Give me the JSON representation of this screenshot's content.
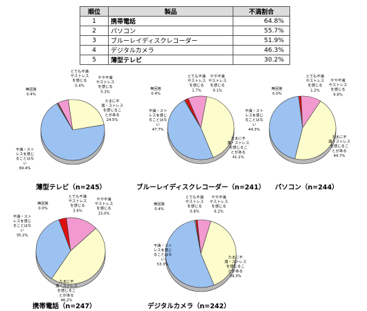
{
  "table": {
    "headers": [
      "順位",
      "製品",
      "不満割合"
    ],
    "rows": [
      {
        "rank": "1",
        "product": "携帯電話",
        "rate": "64.8%",
        "bold": true
      },
      {
        "rank": "2",
        "product": "パソコン",
        "rate": "55.7%",
        "bold": false
      },
      {
        "rank": "3",
        "product": "ブルーレイディスクレコーダー",
        "rate": "51.9%",
        "bold": false
      },
      {
        "rank": "4",
        "product": "デジタルカメラ",
        "rate": "46.3%",
        "bold": false
      },
      {
        "rank": "5",
        "product": "薄型テレビ",
        "rate": "30.2%",
        "bold": true
      }
    ]
  },
  "colors": {
    "very_stress": "#dd1010",
    "somewhat": "#f29ad0",
    "sometimes": "#fdfccc",
    "none": "#9cc2f2",
    "no_answer": "#ffffff"
  },
  "chart_data": [
    {
      "type": "pie",
      "title": "薄型テレビ（n=245）",
      "slices": [
        {
          "label": "無回答",
          "value": 0.4,
          "value_label": "0.4%",
          "color": "#ffffff"
        },
        {
          "label": "とても不満やストレスを感じる",
          "value": 0.4,
          "value_label": "0.4%",
          "color": "#dd1010"
        },
        {
          "label": "やや不満やストレスを感じる",
          "value": 5.3,
          "value_label": "5.3%",
          "color": "#f29ad0"
        },
        {
          "label": "たまに不満・ストレスを感じることがある",
          "value": 24.5,
          "value_label": "24.5%",
          "color": "#fdfccc"
        },
        {
          "label": "不満・ストレスを感じることはない",
          "value": 69.4,
          "value_label": "69.4%",
          "color": "#9cc2f2"
        }
      ]
    },
    {
      "type": "pie",
      "title": "ブルーレイディスクレコーダー（n=241）",
      "slices": [
        {
          "label": "無回答",
          "value": 0.4,
          "value_label": "0.4%",
          "color": "#ffffff"
        },
        {
          "label": "とても不満やストレスを感じる",
          "value": 1.7,
          "value_label": "1.7%",
          "color": "#dd1010"
        },
        {
          "label": "やや不満やストレスを感じる",
          "value": 9.1,
          "value_label": "9.1%",
          "color": "#f29ad0"
        },
        {
          "label": "たまに不満・ストレスを感じることがある",
          "value": 41.1,
          "value_label": "41.1%",
          "color": "#fdfccc"
        },
        {
          "label": "不満・ストレスを感じることはない",
          "value": 47.7,
          "value_label": "47.7%",
          "color": "#9cc2f2"
        }
      ]
    },
    {
      "type": "pie",
      "title": "パソコン（n=244）",
      "slices": [
        {
          "label": "無回答",
          "value": 0.0,
          "value_label": "0.0%",
          "color": "#ffffff"
        },
        {
          "label": "とても不満やストレスを感じる",
          "value": 1.2,
          "value_label": "1.2%",
          "color": "#dd1010"
        },
        {
          "label": "やや不満やストレスを感じる",
          "value": 9.8,
          "value_label": "9.8%",
          "color": "#f29ad0"
        },
        {
          "label": "たまに不満・ストレスを感じることがある",
          "value": 44.7,
          "value_label": "44.7%",
          "color": "#fdfccc"
        },
        {
          "label": "不満・ストレスを感じることはない",
          "value": 44.3,
          "value_label": "44.3%",
          "color": "#9cc2f2"
        }
      ]
    },
    {
      "type": "pie",
      "title": "携帯電話（n=247）",
      "slices": [
        {
          "label": "無回答",
          "value": 0.0,
          "value_label": "0.0%",
          "color": "#ffffff"
        },
        {
          "label": "とても不満やストレスを感じる",
          "value": 3.6,
          "value_label": "3.6%",
          "color": "#dd1010"
        },
        {
          "label": "やや不満やストレスを感じる",
          "value": 15.0,
          "value_label": "15.0%",
          "color": "#f29ad0"
        },
        {
          "label": "たまに不満・ストレスを感じることがある",
          "value": 46.2,
          "value_label": "46.2%",
          "color": "#fdfccc"
        },
        {
          "label": "不満・ストレスを感じることはない",
          "value": 35.2,
          "value_label": "35.2%",
          "color": "#9cc2f2"
        }
      ]
    },
    {
      "type": "pie",
      "title": "デジタルカメラ（n=242）",
      "slices": [
        {
          "label": "無回答",
          "value": 0.4,
          "value_label": "0.4%",
          "color": "#ffffff"
        },
        {
          "label": "とても不満やストレスを感じる",
          "value": 0.8,
          "value_label": "0.8%",
          "color": "#dd1010"
        },
        {
          "label": "やや不満やストレスを感じる",
          "value": 6.2,
          "value_label": "6.2%",
          "color": "#f29ad0"
        },
        {
          "label": "たまに不満・ストレスを感じることがある",
          "value": 39.3,
          "value_label": "39.3%",
          "color": "#fdfccc"
        },
        {
          "label": "不満・ストレスを感じることはない",
          "value": 53.3,
          "value_label": "53.3%",
          "color": "#9cc2f2"
        }
      ]
    }
  ]
}
